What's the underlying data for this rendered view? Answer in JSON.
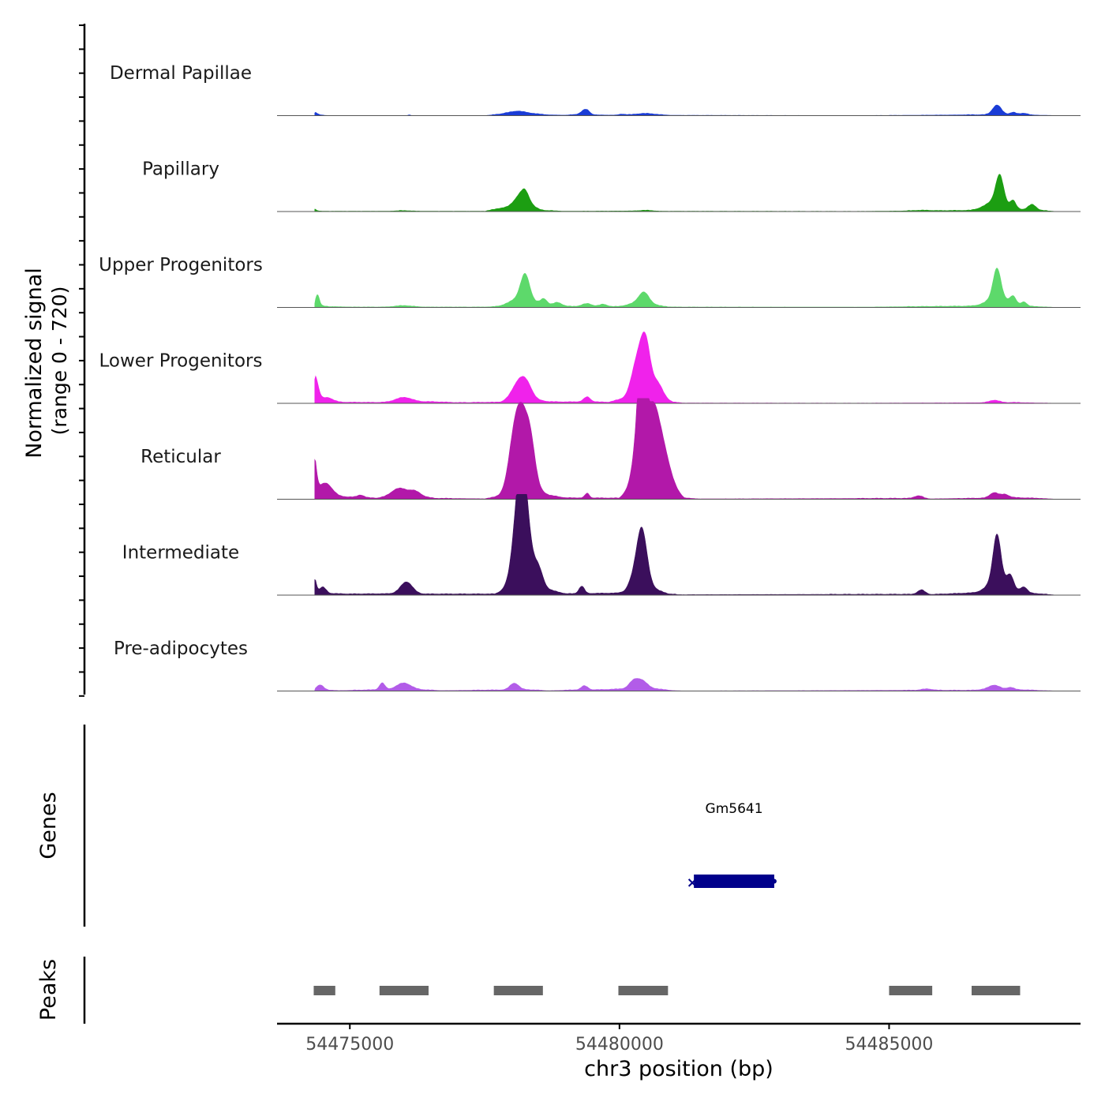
{
  "chart_data": {
    "type": "area",
    "title": "",
    "ylabel_line1": "Normalized signal",
    "ylabel_line2": "(range 0 - 720)",
    "xlabel": "chr3 position (bp)",
    "ylim": [
      0,
      720
    ],
    "x_range": [
      54473650,
      54488550
    ],
    "x_ticks": [
      54475000,
      54480000,
      54485000
    ],
    "x_tick_labels": [
      "54475000",
      "54480000",
      "54485000"
    ],
    "tracks": [
      {
        "name": "Dermal Papillae",
        "color": "#1a3cd6",
        "base": [
          [
            54474350,
            8
          ],
          [
            54474600,
            0
          ],
          [
            54477500,
            0
          ],
          [
            54477800,
            10
          ],
          [
            54478100,
            22
          ],
          [
            54478700,
            5
          ],
          [
            54479000,
            3
          ],
          [
            54479200,
            8
          ],
          [
            54479400,
            14
          ],
          [
            54479500,
            5
          ],
          [
            54480000,
            3
          ],
          [
            54480600,
            8
          ],
          [
            54481000,
            2
          ],
          [
            54484500,
            0
          ],
          [
            54486700,
            6
          ],
          [
            54487300,
            8
          ],
          [
            54487900,
            2
          ],
          [
            54488100,
            0
          ]
        ],
        "peaks": [
          [
            54474330,
            50,
            22
          ],
          [
            54476100,
            25,
            5
          ],
          [
            54478100,
            180,
            12
          ],
          [
            54479370,
            70,
            34
          ],
          [
            54480050,
            60,
            7
          ],
          [
            54480450,
            150,
            9
          ],
          [
            54487000,
            80,
            72
          ],
          [
            54487300,
            60,
            16
          ],
          [
            54487500,
            60,
            12
          ]
        ]
      },
      {
        "name": "Papillary",
        "color": "#1c9e12",
        "base": [
          [
            54474350,
            6
          ],
          [
            54474500,
            2
          ],
          [
            54477500,
            2
          ],
          [
            54477800,
            25
          ],
          [
            54478100,
            30
          ],
          [
            54478600,
            8
          ],
          [
            54479000,
            2
          ],
          [
            54480300,
            4
          ],
          [
            54480800,
            2
          ],
          [
            54484500,
            1
          ],
          [
            54486500,
            8
          ],
          [
            54486900,
            25
          ],
          [
            54487300,
            15
          ],
          [
            54487700,
            12
          ],
          [
            54488100,
            0
          ]
        ],
        "peaks": [
          [
            54474330,
            30,
            22
          ],
          [
            54476000,
            150,
            4
          ],
          [
            54478200,
            130,
            110
          ],
          [
            54478250,
            60,
            40
          ],
          [
            54480500,
            120,
            5
          ],
          [
            54485600,
            160,
            4
          ],
          [
            54487050,
            70,
            200
          ],
          [
            54487000,
            180,
            60
          ],
          [
            54487300,
            50,
            55
          ],
          [
            54487650,
            70,
            40
          ]
        ]
      },
      {
        "name": "Upper Progenitors",
        "color": "#5dd96b",
        "base": [
          [
            54474350,
            18
          ],
          [
            54474600,
            6
          ],
          [
            54475000,
            3
          ],
          [
            54478000,
            3
          ],
          [
            54478500,
            15
          ],
          [
            54478900,
            8
          ],
          [
            54479500,
            6
          ],
          [
            54480000,
            4
          ],
          [
            54480500,
            12
          ],
          [
            54480900,
            3
          ],
          [
            54484500,
            2
          ],
          [
            54486700,
            10
          ],
          [
            54487200,
            20
          ],
          [
            54487600,
            8
          ],
          [
            54488100,
            0
          ]
        ],
        "peaks": [
          [
            54474400,
            35,
            80
          ],
          [
            54476000,
            150,
            10
          ],
          [
            54478250,
            80,
            180
          ],
          [
            54478180,
            200,
            70
          ],
          [
            54478600,
            60,
            45
          ],
          [
            54478850,
            80,
            28
          ],
          [
            54479400,
            90,
            22
          ],
          [
            54479700,
            70,
            18
          ],
          [
            54480450,
            90,
            75
          ],
          [
            54480400,
            200,
            30
          ],
          [
            54487000,
            70,
            220
          ],
          [
            54487000,
            180,
            60
          ],
          [
            54487300,
            55,
            55
          ],
          [
            54487500,
            50,
            30
          ]
        ]
      },
      {
        "name": "Lower Progenitors",
        "color": "#f022eb",
        "base": [
          [
            54474350,
            30
          ],
          [
            54474700,
            8
          ],
          [
            54475500,
            6
          ],
          [
            54476500,
            12
          ],
          [
            54477000,
            5
          ],
          [
            54477800,
            8
          ],
          [
            54478200,
            40
          ],
          [
            54478700,
            12
          ],
          [
            54479000,
            10
          ],
          [
            54479400,
            12
          ],
          [
            54479800,
            8
          ],
          [
            54480100,
            40
          ],
          [
            54480500,
            70
          ],
          [
            54481000,
            8
          ],
          [
            54481200,
            2
          ],
          [
            54484500,
            1
          ],
          [
            54486800,
            4
          ],
          [
            54487300,
            6
          ],
          [
            54488100,
            0
          ]
        ],
        "peaks": [
          [
            54474350,
            60,
            180
          ],
          [
            54474600,
            100,
            28
          ],
          [
            54476000,
            150,
            35
          ],
          [
            54478150,
            130,
            140
          ],
          [
            54478300,
            90,
            60
          ],
          [
            54479400,
            60,
            36
          ],
          [
            54480400,
            110,
            330
          ],
          [
            54480500,
            80,
            200
          ],
          [
            54480700,
            100,
            110
          ],
          [
            54480250,
            80,
            70
          ],
          [
            54486950,
            90,
            18
          ]
        ]
      },
      {
        "name": "Reticular",
        "color": "#b218a9",
        "base": [
          [
            54474350,
            40
          ],
          [
            54474800,
            20
          ],
          [
            54475500,
            8
          ],
          [
            54476000,
            30
          ],
          [
            54476600,
            6
          ],
          [
            54477500,
            3
          ],
          [
            54477900,
            30
          ],
          [
            54478200,
            120
          ],
          [
            54478700,
            30
          ],
          [
            54479000,
            10
          ],
          [
            54480000,
            8
          ],
          [
            54480400,
            180
          ],
          [
            54480800,
            120
          ],
          [
            54481200,
            8
          ],
          [
            54481500,
            2
          ],
          [
            54485300,
            6
          ],
          [
            54485700,
            2
          ],
          [
            54486800,
            8
          ],
          [
            54487300,
            12
          ],
          [
            54487800,
            6
          ],
          [
            54488100,
            0
          ]
        ],
        "peaks": [
          [
            54474320,
            50,
            330
          ],
          [
            54474550,
            120,
            90
          ],
          [
            54475200,
            60,
            18
          ],
          [
            54475900,
            130,
            55
          ],
          [
            54476200,
            110,
            40
          ],
          [
            54478150,
            130,
            560
          ],
          [
            54478350,
            90,
            280
          ],
          [
            54478000,
            100,
            120
          ],
          [
            54479400,
            40,
            35
          ],
          [
            54480420,
            60,
            780
          ],
          [
            54480350,
            90,
            350
          ],
          [
            54480600,
            120,
            480
          ],
          [
            54480800,
            140,
            250
          ],
          [
            54485550,
            80,
            22
          ],
          [
            54486950,
            80,
            40
          ],
          [
            54487150,
            70,
            25
          ]
        ]
      },
      {
        "name": "Intermediate",
        "color": "#3b0f5c",
        "base": [
          [
            54474350,
            20
          ],
          [
            54474600,
            12
          ],
          [
            54475000,
            8
          ],
          [
            54475800,
            10
          ],
          [
            54476300,
            8
          ],
          [
            54477700,
            8
          ],
          [
            54477900,
            40
          ],
          [
            54478200,
            100
          ],
          [
            54478700,
            40
          ],
          [
            54479000,
            10
          ],
          [
            54480100,
            15
          ],
          [
            54480400,
            80
          ],
          [
            54480900,
            10
          ],
          [
            54481100,
            3
          ],
          [
            54485300,
            6
          ],
          [
            54485700,
            3
          ],
          [
            54486800,
            20
          ],
          [
            54487200,
            40
          ],
          [
            54487600,
            15
          ],
          [
            54488100,
            0
          ]
        ],
        "peaks": [
          [
            54474330,
            40,
            130
          ],
          [
            54474500,
            60,
            45
          ],
          [
            54476050,
            110,
            90
          ],
          [
            54478180,
            110,
            650
          ],
          [
            54478200,
            150,
            300
          ],
          [
            54478500,
            80,
            120
          ],
          [
            54479300,
            50,
            55
          ],
          [
            54480420,
            90,
            310
          ],
          [
            54480350,
            130,
            140
          ],
          [
            54485600,
            70,
            35
          ],
          [
            54487000,
            70,
            330
          ],
          [
            54487000,
            160,
            100
          ],
          [
            54487250,
            60,
            90
          ],
          [
            54487500,
            60,
            40
          ]
        ]
      },
      {
        "name": "Pre-adipocytes",
        "color": "#b25ce8",
        "base": [
          [
            54474350,
            12
          ],
          [
            54474800,
            3
          ],
          [
            54475600,
            10
          ],
          [
            54476300,
            10
          ],
          [
            54476700,
            3
          ],
          [
            54477900,
            8
          ],
          [
            54478300,
            10
          ],
          [
            54478700,
            2
          ],
          [
            54479200,
            8
          ],
          [
            54479700,
            10
          ],
          [
            54480200,
            18
          ],
          [
            54480700,
            15
          ],
          [
            54481000,
            3
          ],
          [
            54481200,
            0
          ],
          [
            54485200,
            5
          ],
          [
            54486500,
            5
          ],
          [
            54486900,
            14
          ],
          [
            54487400,
            10
          ],
          [
            54487800,
            4
          ],
          [
            54488100,
            0
          ]
        ],
        "peaks": [
          [
            54474450,
            60,
            35
          ],
          [
            54475600,
            50,
            50
          ],
          [
            54476000,
            130,
            50
          ],
          [
            54478050,
            80,
            50
          ],
          [
            54479350,
            60,
            30
          ],
          [
            54480400,
            110,
            65
          ],
          [
            54480250,
            80,
            40
          ],
          [
            54485700,
            100,
            10
          ],
          [
            54486950,
            100,
            30
          ],
          [
            54487250,
            60,
            16
          ]
        ]
      }
    ],
    "genes": [
      {
        "name": "Gm5641",
        "start": 54481380,
        "end": 54482870,
        "strand": "-"
      }
    ],
    "peaks": [
      {
        "start": 54474330,
        "end": 54474730
      },
      {
        "start": 54475550,
        "end": 54476460
      },
      {
        "start": 54477670,
        "end": 54478580
      },
      {
        "start": 54479980,
        "end": 54480900
      },
      {
        "start": 54485000,
        "end": 54485800
      },
      {
        "start": 54486530,
        "end": 54487430
      }
    ],
    "panel_labels": {
      "genes": "Genes",
      "peaks": "Peaks"
    }
  },
  "colors": {
    "gene": "#00008b",
    "peak": "#666666",
    "axis": "#000000",
    "tick_label": "#4d4d4d"
  }
}
